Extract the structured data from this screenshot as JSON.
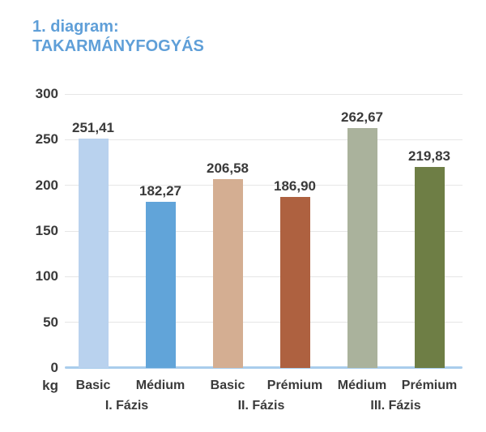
{
  "title": {
    "line1": "1. diagram:",
    "line2": "TAKARMÁNYFOGYÁS"
  },
  "chart_data": {
    "type": "bar",
    "title": "1. diagram: TAKARMÁNYFOGYÁS",
    "ylabel": "kg",
    "xlabel": "",
    "ylim": [
      0,
      300
    ],
    "yticks": [
      0,
      50,
      100,
      150,
      200,
      250,
      300
    ],
    "grid": true,
    "legend": false,
    "groups": [
      {
        "label": "I. Fázis",
        "bars": [
          {
            "category": "Basic",
            "value": 251.41,
            "value_label": "251,41",
            "color": "#b9d2ee"
          },
          {
            "category": "Médium",
            "value": 182.27,
            "value_label": "182,27",
            "color": "#61a4d9"
          }
        ]
      },
      {
        "label": "II. Fázis",
        "bars": [
          {
            "category": "Basic",
            "value": 206.58,
            "value_label": "206,58",
            "color": "#d4ae92"
          },
          {
            "category": "Prémium",
            "value": 186.9,
            "value_label": "186,90",
            "color": "#ae6140"
          }
        ]
      },
      {
        "label": "III. Fázis",
        "bars": [
          {
            "category": "Médium",
            "value": 262.67,
            "value_label": "262,67",
            "color": "#aab29c"
          },
          {
            "category": "Prémium",
            "value": 219.83,
            "value_label": "219,83",
            "color": "#6e7e45"
          }
        ]
      }
    ]
  },
  "colors": {
    "title_text": "#5f9fd8",
    "axis_text": "#3a3a3a",
    "value_text": "#3a3a3a",
    "gridline": "#e6e6e6",
    "zero_axis_line": "#a9cdec",
    "background": "#ffffff"
  }
}
